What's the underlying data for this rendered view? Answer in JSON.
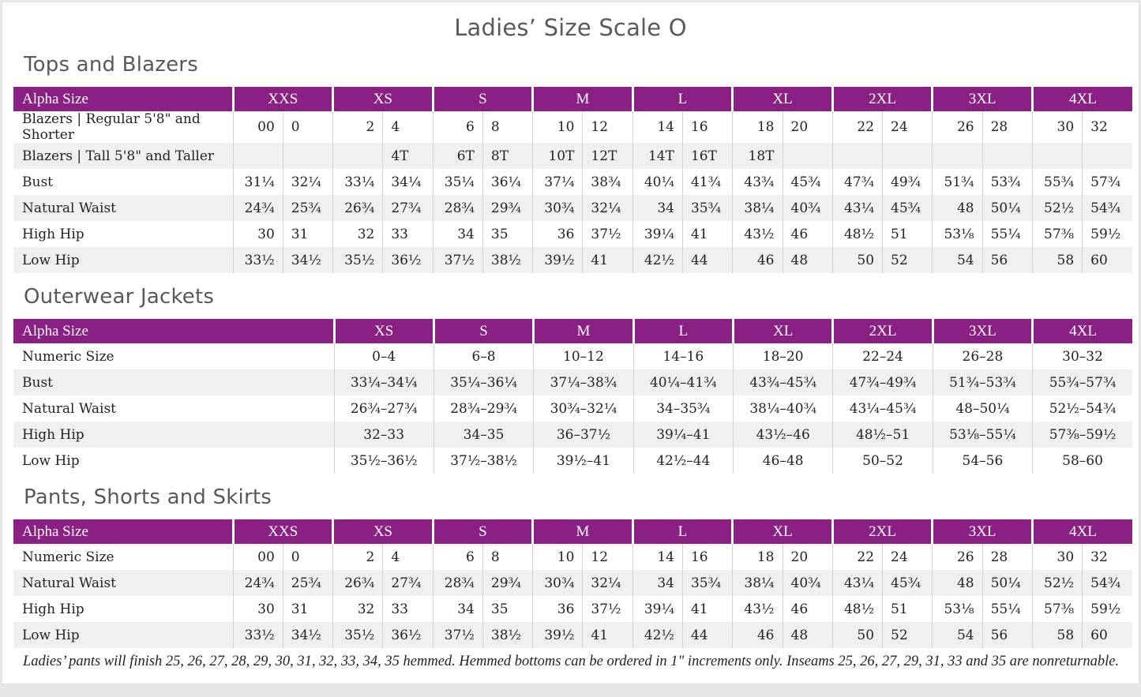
{
  "page": {
    "title": "Ladies’ Size Scale O",
    "footnote": "Ladies’ pants will finish 25, 26, 27, 28, 29, 30, 31, 32, 33, 34, 35 hemmed. Hemmed bottoms can be ordered in 1\" increments only. Inseams 25, 26, 27, 29, 31, 33 and 35 are nonreturnable."
  },
  "colors": {
    "accent_purple": "#8B2084",
    "heading_gray": "#58595B",
    "stripe_gray": "#F1F0EE",
    "divider_gray": "#D5D3D0",
    "body_text": "#25221E"
  },
  "tables": [
    {
      "id": "tops-and-blazers",
      "section_title": "Tops and Blazers",
      "header_label": "Alpha Size",
      "split_columns": true,
      "sizes": [
        "XXS",
        "XS",
        "S",
        "M",
        "L",
        "XL",
        "2XL",
        "3XL",
        "4XL"
      ],
      "rows": [
        {
          "label": "Blazers | Regular 5'8\" and Shorter",
          "values": [
            [
              "00",
              "0"
            ],
            [
              "2",
              "4"
            ],
            [
              "6",
              "8"
            ],
            [
              "10",
              "12"
            ],
            [
              "14",
              "16"
            ],
            [
              "18",
              "20"
            ],
            [
              "22",
              "24"
            ],
            [
              "26",
              "28"
            ],
            [
              "30",
              "32"
            ]
          ]
        },
        {
          "label": "Blazers | Tall 5'8\" and Taller",
          "values": [
            [
              "",
              ""
            ],
            [
              "",
              "4T"
            ],
            [
              "6T",
              "8T"
            ],
            [
              "10T",
              "12T"
            ],
            [
              "14T",
              "16T"
            ],
            [
              "18T",
              ""
            ],
            [
              "",
              ""
            ],
            [
              "",
              ""
            ],
            [
              "",
              ""
            ]
          ]
        },
        {
          "label": "Bust",
          "values": [
            [
              "31¼",
              "32¼"
            ],
            [
              "33¼",
              "34¼"
            ],
            [
              "35¼",
              "36¼"
            ],
            [
              "37¼",
              "38¾"
            ],
            [
              "40¼",
              "41¾"
            ],
            [
              "43¾",
              "45¾"
            ],
            [
              "47¾",
              "49¾"
            ],
            [
              "51¾",
              "53¾"
            ],
            [
              "55¾",
              "57¾"
            ]
          ]
        },
        {
          "label": "Natural Waist",
          "values": [
            [
              "24¾",
              "25¾"
            ],
            [
              "26¾",
              "27¾"
            ],
            [
              "28¾",
              "29¾"
            ],
            [
              "30¾",
              "32¼"
            ],
            [
              "34",
              "35¾"
            ],
            [
              "38¼",
              "40¾"
            ],
            [
              "43¼",
              "45¾"
            ],
            [
              "48",
              "50¼"
            ],
            [
              "52½",
              "54¾"
            ]
          ]
        },
        {
          "label": "High Hip",
          "values": [
            [
              "30",
              "31"
            ],
            [
              "32",
              "33"
            ],
            [
              "34",
              "35"
            ],
            [
              "36",
              "37½"
            ],
            [
              "39¼",
              "41"
            ],
            [
              "43½",
              "46"
            ],
            [
              "48½",
              "51"
            ],
            [
              "53⅛",
              "55¼"
            ],
            [
              "57⅜",
              "59½"
            ]
          ]
        },
        {
          "label": "Low Hip",
          "values": [
            [
              "33½",
              "34½"
            ],
            [
              "35½",
              "36½"
            ],
            [
              "37½",
              "38½"
            ],
            [
              "39½",
              "41"
            ],
            [
              "42½",
              "44"
            ],
            [
              "46",
              "48"
            ],
            [
              "50",
              "52"
            ],
            [
              "54",
              "56"
            ],
            [
              "58",
              "60"
            ]
          ]
        }
      ]
    },
    {
      "id": "outerwear-jackets",
      "section_title": "Outerwear Jackets",
      "header_label": "Alpha Size",
      "split_columns": false,
      "sizes": [
        "XS",
        "S",
        "M",
        "L",
        "XL",
        "2XL",
        "3XL",
        "4XL"
      ],
      "rows": [
        {
          "label": "Numeric Size",
          "values": [
            "0–4",
            "6–8",
            "10–12",
            "14–16",
            "18–20",
            "22–24",
            "26–28",
            "30–32"
          ]
        },
        {
          "label": "Bust",
          "values": [
            "33¼–34¼",
            "35¼–36¼",
            "37¼–38¾",
            "40¼–41¾",
            "43¾–45¾",
            "47¾–49¾",
            "51¾–53¾",
            "55¾–57¾"
          ]
        },
        {
          "label": "Natural Waist",
          "values": [
            "26¾–27¾",
            "28¾–29¾",
            "30¾–32¼",
            "34–35¾",
            "38¼–40¾",
            "43¼–45¾",
            "48–50¼",
            "52½–54¾"
          ]
        },
        {
          "label": "High Hip",
          "values": [
            "32–33",
            "34–35",
            "36–37½",
            "39¼–41",
            "43½–46",
            "48½–51",
            "53⅛–55¼",
            "57⅜–59½"
          ]
        },
        {
          "label": "Low Hip",
          "values": [
            "35½–36½",
            "37½–38½",
            "39½–41",
            "42½–44",
            "46–48",
            "50–52",
            "54–56",
            "58–60"
          ]
        }
      ]
    },
    {
      "id": "pants-shorts-skirts",
      "section_title": "Pants, Shorts and Skirts",
      "header_label": "Alpha Size",
      "split_columns": true,
      "sizes": [
        "XXS",
        "XS",
        "S",
        "M",
        "L",
        "XL",
        "2XL",
        "3XL",
        "4XL"
      ],
      "rows": [
        {
          "label": "Numeric Size",
          "values": [
            [
              "00",
              "0"
            ],
            [
              "2",
              "4"
            ],
            [
              "6",
              "8"
            ],
            [
              "10",
              "12"
            ],
            [
              "14",
              "16"
            ],
            [
              "18",
              "20"
            ],
            [
              "22",
              "24"
            ],
            [
              "26",
              "28"
            ],
            [
              "30",
              "32"
            ]
          ]
        },
        {
          "label": "Natural Waist",
          "values": [
            [
              "24¾",
              "25¾"
            ],
            [
              "26¾",
              "27¾"
            ],
            [
              "28¾",
              "29¾"
            ],
            [
              "30¾",
              "32¼"
            ],
            [
              "34",
              "35¾"
            ],
            [
              "38¼",
              "40¾"
            ],
            [
              "43¼",
              "45¾"
            ],
            [
              "48",
              "50¼"
            ],
            [
              "52½",
              "54¾"
            ]
          ]
        },
        {
          "label": "High Hip",
          "values": [
            [
              "30",
              "31"
            ],
            [
              "32",
              "33"
            ],
            [
              "34",
              "35"
            ],
            [
              "36",
              "37½"
            ],
            [
              "39¼",
              "41"
            ],
            [
              "43½",
              "46"
            ],
            [
              "48½",
              "51"
            ],
            [
              "53⅛",
              "55¼"
            ],
            [
              "57⅜",
              "59½"
            ]
          ]
        },
        {
          "label": "Low Hip",
          "values": [
            [
              "33½",
              "34½"
            ],
            [
              "35½",
              "36½"
            ],
            [
              "37½",
              "38½"
            ],
            [
              "39½",
              "41"
            ],
            [
              "42½",
              "44"
            ],
            [
              "46",
              "48"
            ],
            [
              "50",
              "52"
            ],
            [
              "54",
              "56"
            ],
            [
              "58",
              "60"
            ]
          ]
        }
      ]
    }
  ]
}
